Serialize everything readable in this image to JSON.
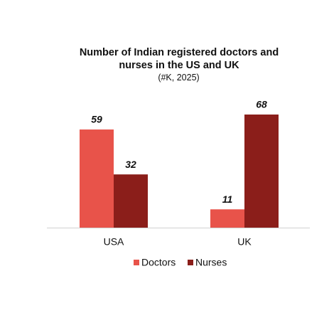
{
  "chart_data": {
    "type": "bar",
    "title": "Number of Indian registered doctors and nurses in the US and UK",
    "subtitle": "(#K, 2025)",
    "categories": [
      "USA",
      "UK"
    ],
    "series": [
      {
        "name": "Doctors",
        "color": "#e8534a",
        "values": [
          59,
          11
        ]
      },
      {
        "name": "Nurses",
        "color": "#8b1e1a",
        "values": [
          32,
          68
        ]
      }
    ]
  }
}
